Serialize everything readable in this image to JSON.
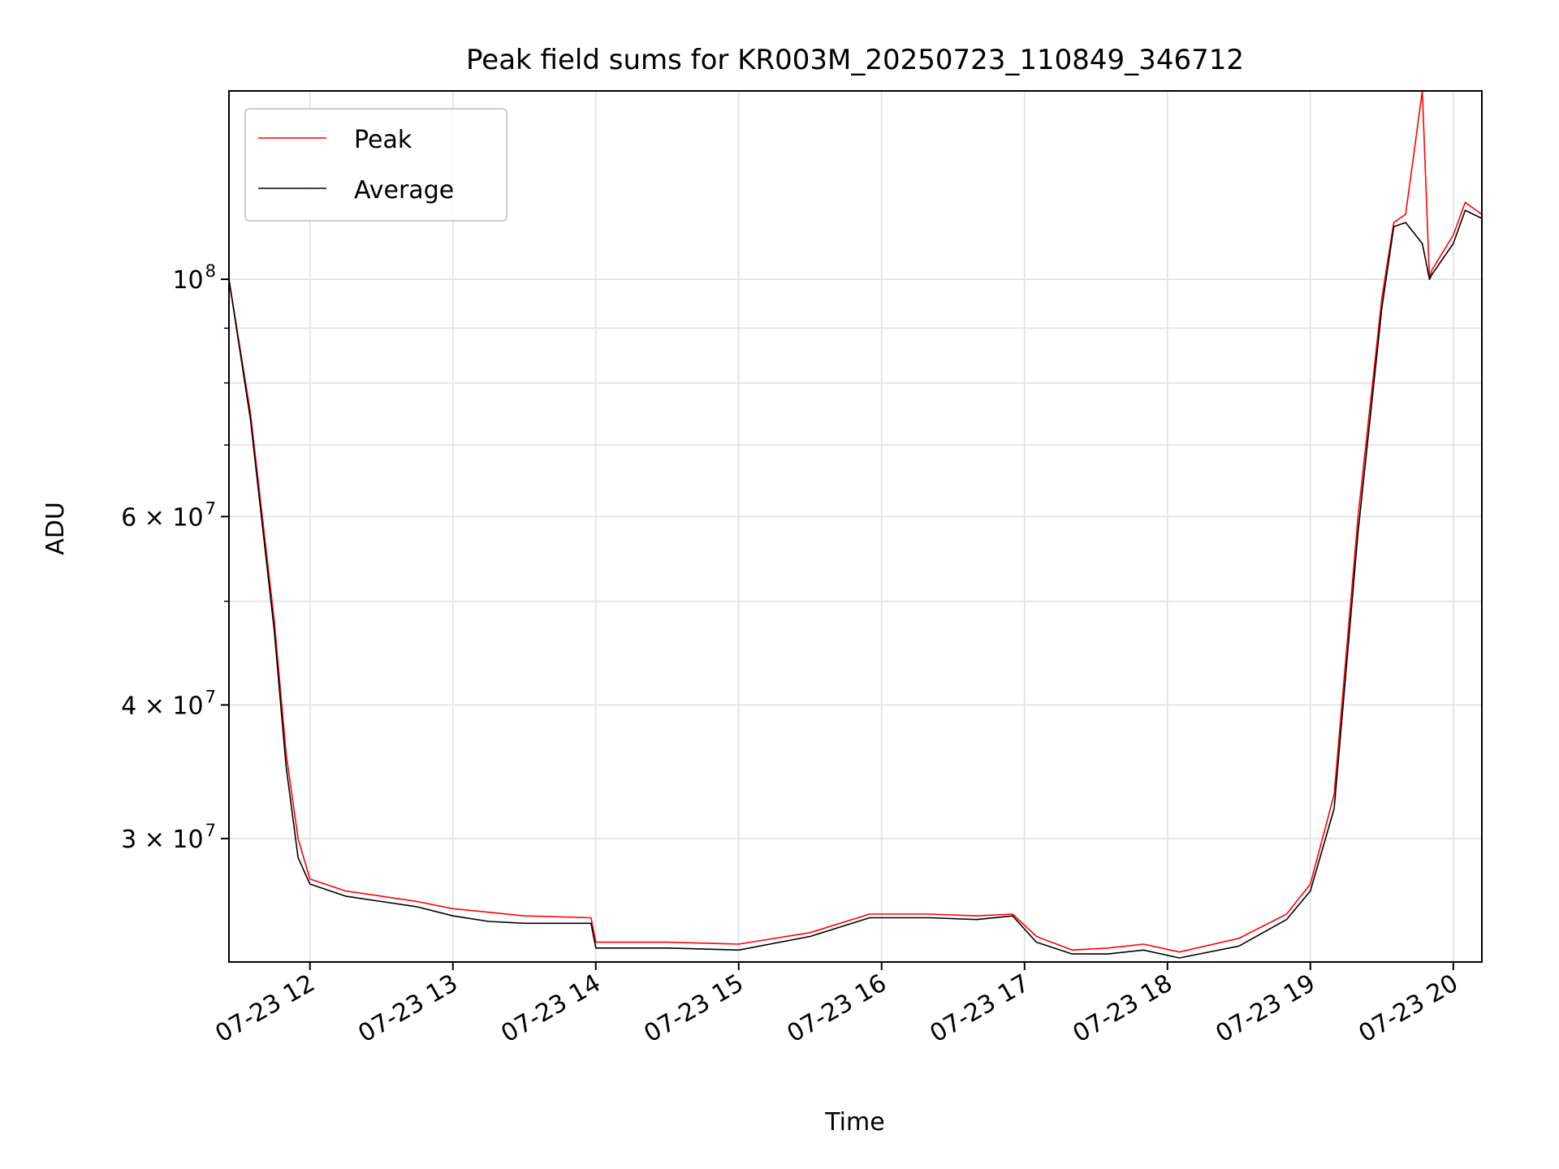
{
  "chart_data": {
    "type": "line",
    "title": "Peak field sums for KR003M_20250723_110849_346712",
    "xlabel": "Time",
    "ylabel": "ADU",
    "yscale": "log",
    "ylim": [
      23000000,
      150000000
    ],
    "xlim": [
      "07-23 11:26",
      "07-23 20:12"
    ],
    "x_ticks": [
      "07-23 12",
      "07-23 13",
      "07-23 14",
      "07-23 15",
      "07-23 16",
      "07-23 17",
      "07-23 18",
      "07-23 19",
      "07-23 20"
    ],
    "y_ticks": [
      {
        "value": 100000000,
        "base": "10",
        "exp": "8"
      },
      {
        "value": 60000000,
        "base": "6 × 10",
        "exp": "7"
      },
      {
        "value": 40000000,
        "base": "4 × 10",
        "exp": "7"
      },
      {
        "value": 30000000,
        "base": "3 × 10",
        "exp": "7"
      }
    ],
    "grid": true,
    "legend_position": "top-left",
    "series": [
      {
        "name": "Peak",
        "color": "#ff0000",
        "x": [
          "07-23 11:26",
          "07-23 11:35",
          "07-23 11:45",
          "07-23 11:50",
          "07-23 11:55",
          "07-23 12:00",
          "07-23 12:15",
          "07-23 12:30",
          "07-23 12:45",
          "07-23 13:00",
          "07-23 13:15",
          "07-23 13:30",
          "07-23 13:58",
          "07-23 14:00",
          "07-23 14:30",
          "07-23 15:00",
          "07-23 15:30",
          "07-23 15:55",
          "07-23 16:20",
          "07-23 16:40",
          "07-23 16:55",
          "07-23 17:05",
          "07-23 17:20",
          "07-23 17:35",
          "07-23 17:50",
          "07-23 18:05",
          "07-23 18:30",
          "07-23 18:50",
          "07-23 19:00",
          "07-23 19:10",
          "07-23 19:20",
          "07-23 19:30",
          "07-23 19:35",
          "07-23 19:40",
          "07-23 19:47",
          "07-23 19:50",
          "07-23 19:51",
          "07-23 20:00",
          "07-23 20:05",
          "07-23 20:12"
        ],
        "y": [
          100000000,
          75000000,
          48000000,
          36000000,
          30000000,
          27500000,
          26800000,
          26500000,
          26200000,
          25800000,
          25600000,
          25400000,
          25300000,
          24000000,
          24000000,
          23900000,
          24500000,
          25500000,
          25500000,
          25400000,
          25500000,
          24300000,
          23600000,
          23700000,
          23900000,
          23500000,
          24200000,
          25500000,
          27200000,
          33000000,
          60000000,
          96000000,
          113000000,
          115000000,
          150000000,
          100000000,
          102000000,
          110000000,
          118000000,
          115000000
        ]
      },
      {
        "name": "Average",
        "color": "#000000",
        "x": [
          "07-23 11:26",
          "07-23 11:35",
          "07-23 11:45",
          "07-23 11:50",
          "07-23 11:55",
          "07-23 12:00",
          "07-23 12:15",
          "07-23 12:30",
          "07-23 12:45",
          "07-23 13:00",
          "07-23 13:15",
          "07-23 13:30",
          "07-23 13:58",
          "07-23 14:00",
          "07-23 14:30",
          "07-23 15:00",
          "07-23 15:30",
          "07-23 15:55",
          "07-23 16:20",
          "07-23 16:40",
          "07-23 16:55",
          "07-23 17:05",
          "07-23 17:20",
          "07-23 17:35",
          "07-23 17:50",
          "07-23 18:05",
          "07-23 18:30",
          "07-23 18:50",
          "07-23 19:00",
          "07-23 19:10",
          "07-23 19:20",
          "07-23 19:30",
          "07-23 19:35",
          "07-23 19:40",
          "07-23 19:47",
          "07-23 19:50",
          "07-23 19:51",
          "07-23 20:00",
          "07-23 20:05",
          "07-23 20:12"
        ],
        "y": [
          100000000,
          74000000,
          47000000,
          35000000,
          28800000,
          27200000,
          26500000,
          26200000,
          25900000,
          25400000,
          25100000,
          25000000,
          25000000,
          23700000,
          23700000,
          23600000,
          24300000,
          25300000,
          25300000,
          25200000,
          25400000,
          24000000,
          23400000,
          23400000,
          23600000,
          23200000,
          23800000,
          25200000,
          26800000,
          32000000,
          58000000,
          94000000,
          112000000,
          113000000,
          108000000,
          100000000,
          101000000,
          108000000,
          116000000,
          114000000
        ]
      }
    ]
  }
}
